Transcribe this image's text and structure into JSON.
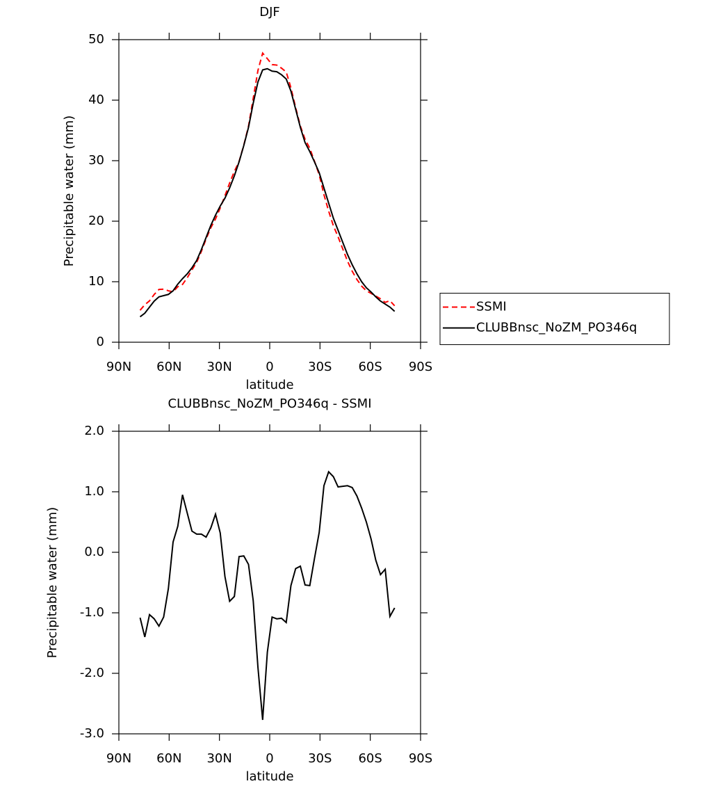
{
  "chart_data": [
    {
      "type": "line",
      "title": "DJF",
      "x_label": "latitude",
      "y_label": "Precipitable water (mm)",
      "x": [
        77.34,
        74.53,
        71.72,
        68.91,
        66.09,
        63.28,
        60.47,
        57.66,
        54.84,
        52.03,
        49.22,
        46.41,
        43.59,
        40.78,
        37.97,
        35.16,
        32.34,
        29.53,
        26.72,
        23.91,
        21.09,
        18.28,
        15.47,
        12.66,
        9.84,
        7.03,
        4.22,
        1.41,
        -1.41,
        -4.22,
        -7.03,
        -9.84,
        -12.66,
        -15.47,
        -18.28,
        -21.09,
        -23.91,
        -26.72,
        -29.53,
        -32.34,
        -35.16,
        -37.97,
        -40.78,
        -43.59,
        -46.41,
        -49.22,
        -52.03,
        -54.84,
        -57.66,
        -60.47,
        -63.28,
        -66.09,
        -68.91,
        -71.72,
        -74.53
      ],
      "series": [
        {
          "name": "SSMI",
          "color": "#ff0000",
          "line_style": "dashed",
          "values": [
            5.28,
            6.2,
            6.83,
            7.9,
            8.72,
            8.77,
            8.5,
            8.33,
            9.17,
            9.55,
            10.65,
            11.95,
            13.2,
            15.0,
            17.05,
            18.9,
            20.37,
            22.18,
            24.2,
            26.31,
            28.23,
            29.87,
            32.56,
            35.7,
            40.3,
            44.9,
            47.77,
            46.85,
            45.87,
            45.8,
            45.29,
            44.66,
            42.05,
            38.77,
            35.73,
            33.54,
            32.05,
            29.9,
            27.67,
            24.4,
            21.67,
            19.25,
            17.42,
            15.41,
            13.4,
            11.73,
            10.37,
            9.27,
            8.5,
            8.08,
            7.63,
            7.17,
            6.58,
            6.86,
            6.02
          ]
        },
        {
          "name": "CLUBBnsc_NoZM_PO346q",
          "color": "#000000",
          "line_style": "solid",
          "values": [
            4.2,
            4.8,
            5.8,
            6.8,
            7.5,
            7.7,
            7.9,
            8.5,
            9.6,
            10.5,
            11.3,
            12.3,
            13.5,
            15.3,
            17.3,
            19.3,
            21.0,
            22.5,
            23.8,
            25.5,
            27.5,
            29.8,
            32.5,
            35.5,
            39.5,
            43.0,
            45.0,
            45.2,
            44.8,
            44.7,
            44.2,
            43.5,
            41.5,
            38.5,
            35.5,
            33.0,
            31.5,
            29.8,
            28.0,
            25.5,
            23.0,
            20.5,
            18.5,
            16.5,
            14.5,
            12.8,
            11.3,
            10.0,
            9.0,
            8.3,
            7.5,
            6.8,
            6.3,
            5.8,
            5.1
          ]
        }
      ],
      "xlim": [
        90,
        -90
      ],
      "xticks": [
        {
          "value": 90,
          "label": "90N"
        },
        {
          "value": 60,
          "label": "60N"
        },
        {
          "value": 30,
          "label": "30N"
        },
        0,
        {
          "value": -30,
          "label": "30S"
        },
        {
          "value": -60,
          "label": "60S"
        },
        {
          "value": -90,
          "label": "90S"
        }
      ],
      "ylim": [
        0,
        50
      ],
      "yticks": [
        0,
        10,
        20,
        30,
        40,
        50
      ],
      "legend": "right",
      "grid": false
    },
    {
      "type": "line",
      "title": "CLUBBnsc_NoZM_PO346q - SSMI",
      "x_label": "latitude",
      "y_label": "Precipitable water (mm)",
      "x": [
        77.34,
        74.53,
        71.72,
        68.91,
        66.09,
        63.28,
        60.47,
        57.66,
        54.84,
        52.03,
        49.22,
        46.41,
        43.59,
        40.78,
        37.97,
        35.16,
        32.34,
        29.53,
        26.72,
        23.91,
        21.09,
        18.28,
        15.47,
        12.66,
        9.84,
        7.03,
        4.22,
        1.41,
        -1.41,
        -4.22,
        -7.03,
        -9.84,
        -12.66,
        -15.47,
        -18.28,
        -21.09,
        -23.91,
        -26.72,
        -29.53,
        -32.34,
        -35.16,
        -37.97,
        -40.78,
        -43.59,
        -46.41,
        -49.22,
        -52.03,
        -54.84,
        -57.66,
        -60.47,
        -63.28,
        -66.09,
        -68.91,
        -71.72,
        -74.53
      ],
      "series": [
        {
          "color": "#000000",
          "line_style": "solid",
          "values": [
            -1.08,
            -1.4,
            -1.03,
            -1.1,
            -1.22,
            -1.07,
            -0.6,
            0.17,
            0.43,
            0.95,
            0.65,
            0.35,
            0.3,
            0.3,
            0.25,
            0.4,
            0.63,
            0.32,
            -0.4,
            -0.81,
            -0.73,
            -0.07,
            -0.06,
            -0.2,
            -0.8,
            -1.9,
            -2.77,
            -1.65,
            -1.07,
            -1.1,
            -1.09,
            -1.16,
            -0.55,
            -0.27,
            -0.23,
            -0.54,
            -0.55,
            -0.1,
            0.33,
            1.1,
            1.33,
            1.25,
            1.08,
            1.09,
            1.1,
            1.07,
            0.93,
            0.73,
            0.5,
            0.22,
            -0.13,
            -0.37,
            -0.28,
            -1.06,
            -0.92
          ]
        }
      ],
      "xlim": [
        90,
        -90
      ],
      "xticks": [
        {
          "value": 90,
          "label": "90N"
        },
        {
          "value": 60,
          "label": "60N"
        },
        {
          "value": 30,
          "label": "30N"
        },
        0,
        {
          "value": -30,
          "label": "30S"
        },
        {
          "value": -60,
          "label": "60S"
        },
        {
          "value": -90,
          "label": "90S"
        }
      ],
      "ylim": [
        -3,
        2
      ],
      "yticks": [
        {
          "value": -3,
          "label": "-3.0"
        },
        {
          "value": -2,
          "label": "-2.0"
        },
        {
          "value": -1,
          "label": "-1.0"
        },
        {
          "value": 0,
          "label": "0.0"
        },
        {
          "value": 1,
          "label": "1.0"
        },
        {
          "value": 2,
          "label": "2.0"
        }
      ],
      "grid": false
    }
  ]
}
